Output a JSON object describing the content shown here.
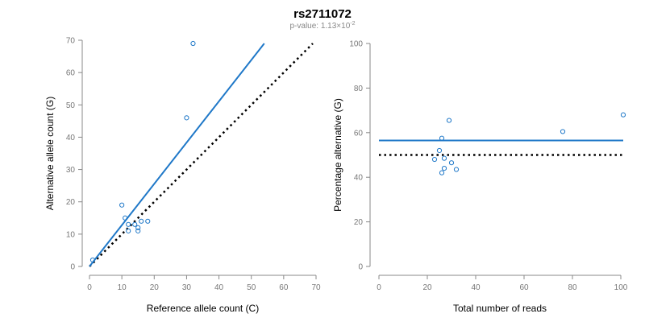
{
  "figure": {
    "title": "rs2711072",
    "subtitle_prefix": "p-value: 1.13×10",
    "subtitle_exponent": "-2"
  },
  "colors": {
    "points": "#1f78c8",
    "fit": "#1f78c8",
    "reference": "#000000"
  },
  "chart_data": [
    {
      "type": "scatter",
      "title": "",
      "xlabel": "Reference allele count (C)",
      "ylabel": "Alternative allele count (G)",
      "xlim": [
        0,
        70
      ],
      "ylim": [
        0,
        70
      ],
      "xticks": [
        0,
        10,
        20,
        30,
        40,
        50,
        60,
        70
      ],
      "yticks": [
        0,
        10,
        20,
        30,
        40,
        50,
        60,
        70
      ],
      "points": [
        {
          "x": 1,
          "y": 2
        },
        {
          "x": 10,
          "y": 19
        },
        {
          "x": 11,
          "y": 15
        },
        {
          "x": 12,
          "y": 13
        },
        {
          "x": 12,
          "y": 11
        },
        {
          "x": 14,
          "y": 13
        },
        {
          "x": 15,
          "y": 12
        },
        {
          "x": 15,
          "y": 11
        },
        {
          "x": 16,
          "y": 14
        },
        {
          "x": 18,
          "y": 14
        },
        {
          "x": 30,
          "y": 46
        },
        {
          "x": 32,
          "y": 69
        }
      ],
      "fit_line": {
        "x": [
          0,
          54
        ],
        "y": [
          0,
          69
        ]
      },
      "reference_line": {
        "x": [
          0,
          69
        ],
        "y": [
          0,
          69
        ],
        "style": "dotted"
      },
      "grid": false
    },
    {
      "type": "scatter",
      "title": "",
      "xlabel": "Total number of reads",
      "ylabel": "Percentage alternative (G)",
      "xlim": [
        0,
        100
      ],
      "ylim": [
        0,
        100
      ],
      "xticks": [
        0,
        20,
        40,
        60,
        80,
        100
      ],
      "yticks": [
        0,
        20,
        40,
        60,
        80,
        100
      ],
      "points": [
        {
          "x": 23,
          "y": 48
        },
        {
          "x": 25,
          "y": 52
        },
        {
          "x": 26,
          "y": 57.5
        },
        {
          "x": 26,
          "y": 42
        },
        {
          "x": 27,
          "y": 48.5
        },
        {
          "x": 27,
          "y": 44
        },
        {
          "x": 29,
          "y": 65.5
        },
        {
          "x": 30,
          "y": 46.5
        },
        {
          "x": 32,
          "y": 43.5
        },
        {
          "x": 76,
          "y": 60.5
        },
        {
          "x": 101,
          "y": 68
        }
      ],
      "fit_line": {
        "x": [
          0,
          101
        ],
        "y": [
          56.5,
          56.5
        ]
      },
      "reference_line": {
        "x": [
          0,
          101
        ],
        "y": [
          50,
          50
        ],
        "style": "dotted"
      },
      "grid": false
    }
  ]
}
